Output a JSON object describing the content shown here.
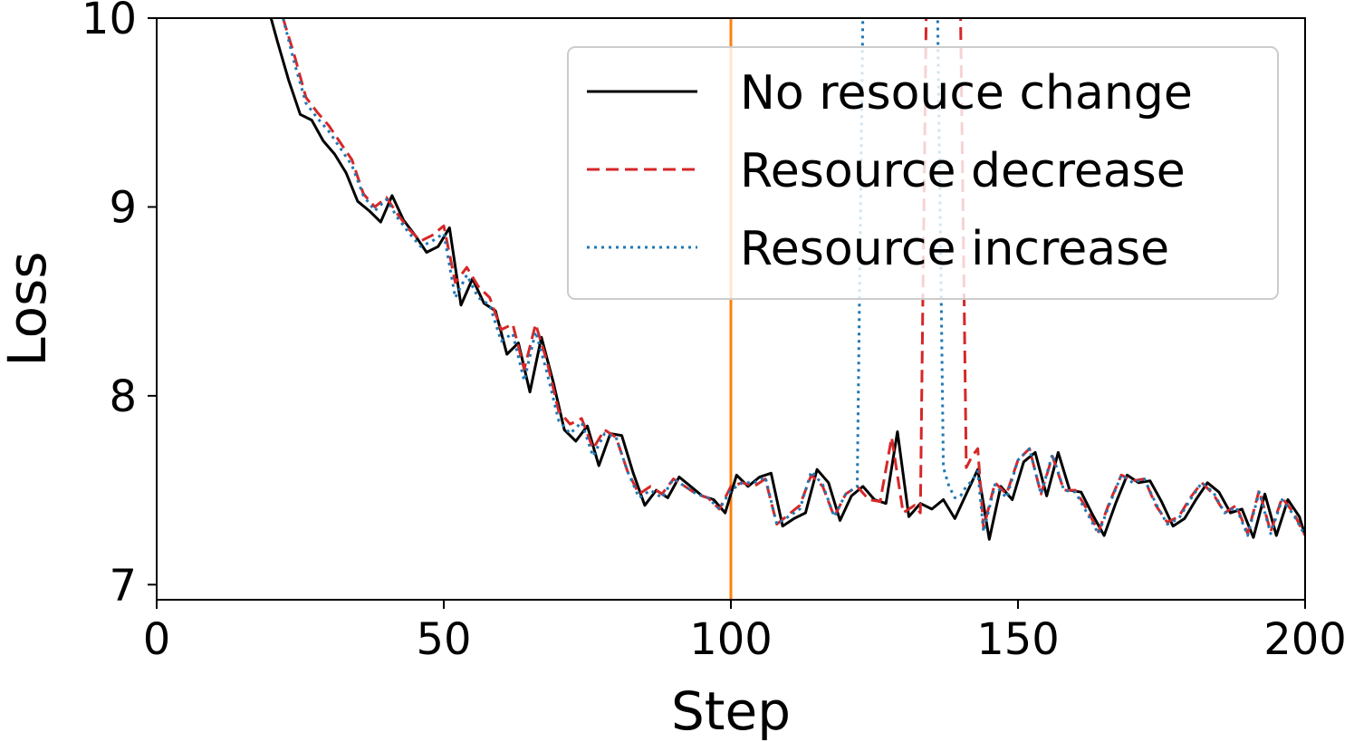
{
  "chart_data": {
    "type": "line",
    "xlabel": "Step",
    "ylabel": "Loss",
    "xlim": [
      0,
      200
    ],
    "ylim": [
      6.92,
      10.0
    ],
    "xticks": [
      "0",
      "50",
      "100",
      "150",
      "200"
    ],
    "yticks": [
      "7",
      "8",
      "9",
      "10"
    ],
    "grid": false,
    "legend_position": "top-right",
    "annotations": [
      {
        "type": "vertical-line",
        "x": 100,
        "color": "#ff7f0e"
      }
    ],
    "series": [
      {
        "name": "No resouce change",
        "color": "#000000",
        "style": "solid",
        "x": [
          19,
          21,
          23,
          25,
          27,
          29,
          31,
          33,
          35,
          37,
          39,
          41,
          43,
          45,
          47,
          49,
          51,
          53,
          55,
          57,
          59,
          61,
          63,
          65,
          67,
          69,
          71,
          73,
          75,
          77,
          79,
          81,
          83,
          85,
          87,
          89,
          91,
          93,
          95,
          97,
          99,
          101,
          103,
          105,
          107,
          109,
          111,
          113,
          115,
          117,
          119,
          121,
          123,
          125,
          127,
          129,
          131,
          133,
          135,
          137,
          139,
          141,
          143,
          145,
          147,
          149,
          151,
          153,
          155,
          157,
          159,
          161,
          163,
          165,
          167,
          169,
          171,
          173,
          175,
          177,
          179,
          181,
          183,
          185,
          187,
          189,
          191,
          193,
          195,
          197,
          199,
          200
        ],
        "values": [
          10.1,
          9.88,
          9.67,
          9.49,
          9.46,
          9.35,
          9.28,
          9.18,
          9.03,
          8.98,
          8.92,
          9.06,
          8.93,
          8.85,
          8.76,
          8.79,
          8.89,
          8.48,
          8.62,
          8.49,
          8.45,
          8.22,
          8.28,
          8.02,
          8.31,
          8.08,
          7.82,
          7.76,
          7.84,
          7.63,
          7.8,
          7.79,
          7.59,
          7.42,
          7.5,
          7.46,
          7.57,
          7.52,
          7.47,
          7.45,
          7.38,
          7.58,
          7.52,
          7.57,
          7.59,
          7.31,
          7.35,
          7.38,
          7.61,
          7.54,
          7.34,
          7.47,
          7.52,
          7.45,
          7.43,
          7.81,
          7.36,
          7.43,
          7.4,
          7.45,
          7.35,
          7.48,
          7.61,
          7.24,
          7.52,
          7.45,
          7.65,
          7.7,
          7.47,
          7.7,
          7.5,
          7.49,
          7.37,
          7.26,
          7.43,
          7.58,
          7.54,
          7.55,
          7.44,
          7.31,
          7.35,
          7.45,
          7.54,
          7.49,
          7.38,
          7.4,
          7.25,
          7.48,
          7.26,
          7.45,
          7.36,
          7.26
        ]
      },
      {
        "name": "Resource decrease",
        "color": "#d62728",
        "style": "dashed",
        "x": [
          22,
          24,
          26,
          28,
          30,
          32,
          34,
          36,
          38,
          40,
          42,
          44,
          46,
          48,
          50,
          52,
          54,
          56,
          58,
          60,
          62,
          64,
          66,
          68,
          70,
          72,
          74,
          76,
          78,
          80,
          82,
          84,
          86,
          88,
          90,
          92,
          94,
          96,
          98,
          100,
          102,
          104,
          106,
          108,
          110,
          112,
          114,
          116,
          118,
          120,
          122,
          124,
          126,
          128,
          130,
          132,
          133,
          134,
          135,
          136,
          137,
          138,
          139,
          140,
          141,
          142,
          143,
          144,
          146,
          148,
          150,
          152,
          154,
          156,
          158,
          160,
          162,
          164,
          166,
          168,
          170,
          172,
          174,
          176,
          178,
          180,
          182,
          184,
          186,
          188,
          190,
          192,
          194,
          196,
          198,
          200
        ],
        "values": [
          10.0,
          9.8,
          9.58,
          9.5,
          9.43,
          9.34,
          9.25,
          9.07,
          9.0,
          9.05,
          8.96,
          8.88,
          8.82,
          8.85,
          8.9,
          8.6,
          8.68,
          8.58,
          8.52,
          8.35,
          8.38,
          8.14,
          8.38,
          8.18,
          7.92,
          7.85,
          7.88,
          7.72,
          7.82,
          7.78,
          7.6,
          7.48,
          7.52,
          7.48,
          7.56,
          7.52,
          7.48,
          7.46,
          7.4,
          7.52,
          7.54,
          7.52,
          7.56,
          7.32,
          7.37,
          7.42,
          7.58,
          7.52,
          7.36,
          7.48,
          7.52,
          7.45,
          7.44,
          7.78,
          7.38,
          7.42,
          7.38,
          10.0,
          10.05,
          10.05,
          10.05,
          10.05,
          10.05,
          10.0,
          7.62,
          7.68,
          7.72,
          7.3,
          7.54,
          7.48,
          7.66,
          7.72,
          7.48,
          7.68,
          7.5,
          7.5,
          7.4,
          7.28,
          7.44,
          7.58,
          7.55,
          7.56,
          7.42,
          7.33,
          7.36,
          7.46,
          7.54,
          7.48,
          7.38,
          7.42,
          7.27,
          7.5,
          7.28,
          7.46,
          7.38,
          7.26
        ]
      },
      {
        "name": "Resource increase",
        "color": "#1f77b4",
        "style": "dotted",
        "x": [
          22,
          24,
          26,
          28,
          30,
          32,
          34,
          36,
          38,
          40,
          42,
          44,
          46,
          48,
          50,
          52,
          54,
          56,
          58,
          60,
          62,
          64,
          66,
          68,
          70,
          72,
          74,
          76,
          78,
          80,
          82,
          84,
          86,
          88,
          90,
          92,
          94,
          96,
          98,
          100,
          102,
          104,
          106,
          108,
          110,
          112,
          114,
          116,
          118,
          120,
          122,
          123,
          124,
          125,
          126,
          127,
          128,
          129,
          130,
          131,
          132,
          133,
          134,
          135,
          136,
          137,
          138,
          139,
          140,
          141,
          142,
          143,
          144,
          146,
          148,
          150,
          152,
          154,
          156,
          158,
          160,
          162,
          164,
          166,
          168,
          170,
          172,
          174,
          176,
          178,
          180,
          182,
          184,
          186,
          188,
          190,
          192,
          194,
          196,
          198,
          200
        ],
        "values": [
          10.0,
          9.76,
          9.55,
          9.47,
          9.4,
          9.31,
          9.22,
          9.06,
          8.98,
          9.04,
          8.94,
          8.86,
          8.79,
          8.82,
          8.86,
          8.52,
          8.64,
          8.52,
          8.48,
          8.29,
          8.33,
          8.08,
          8.34,
          8.12,
          7.87,
          7.8,
          7.86,
          7.68,
          7.8,
          7.78,
          7.6,
          7.46,
          7.5,
          7.46,
          7.56,
          7.52,
          7.48,
          7.46,
          7.4,
          7.5,
          7.54,
          7.54,
          7.57,
          7.32,
          7.36,
          7.4,
          7.6,
          7.53,
          7.36,
          7.48,
          7.52,
          10.05,
          10.05,
          10.05,
          10.05,
          10.05,
          10.05,
          10.05,
          10.05,
          10.05,
          10.05,
          10.05,
          10.05,
          10.05,
          10.05,
          7.62,
          7.52,
          7.46,
          7.47,
          7.52,
          7.55,
          7.6,
          7.28,
          7.53,
          7.46,
          7.66,
          7.72,
          7.48,
          7.69,
          7.5,
          7.49,
          7.38,
          7.27,
          7.43,
          7.58,
          7.54,
          7.56,
          7.43,
          7.32,
          7.35,
          7.45,
          7.54,
          7.49,
          7.38,
          7.41,
          7.26,
          7.49,
          7.27,
          7.45,
          7.37,
          7.26
        ]
      }
    ]
  }
}
